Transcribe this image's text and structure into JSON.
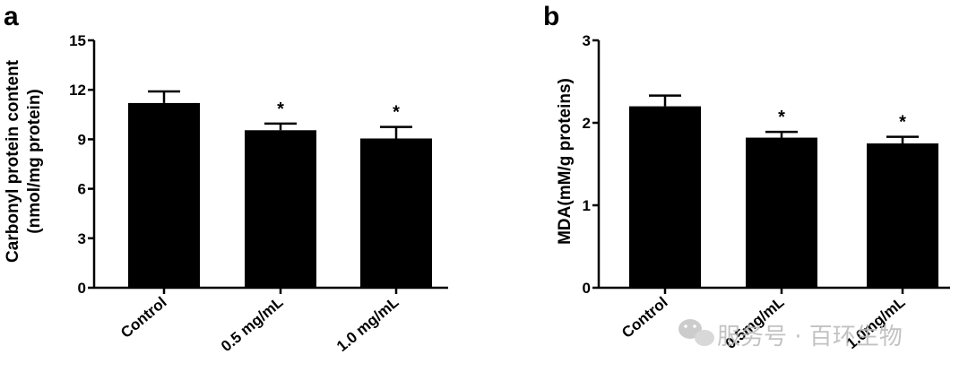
{
  "chart_data": [
    {
      "type": "bar",
      "panel_label": "a",
      "ylabel_line1": "Carbonyl protein content",
      "ylabel_line2": "(nmol/mg protein)",
      "categories": [
        "Control",
        "0.5 mg/mL",
        "1.0 mg/mL"
      ],
      "values": [
        11.2,
        9.55,
        9.05
      ],
      "errors": [
        0.7,
        0.4,
        0.7
      ],
      "significance": [
        "",
        "*",
        "*"
      ],
      "ylim": [
        0,
        15
      ],
      "yticks": [
        0,
        3,
        6,
        9,
        12,
        15
      ],
      "bar_color": "#000000"
    },
    {
      "type": "bar",
      "panel_label": "b",
      "ylabel_line1": "MDA(mM/g proteins)",
      "ylabel_line2": "",
      "categories": [
        "Control",
        "0.5mg/mL",
        "1.0mg/mL"
      ],
      "values": [
        2.2,
        1.82,
        1.75
      ],
      "errors": [
        0.13,
        0.07,
        0.08
      ],
      "significance": [
        "",
        "*",
        "*"
      ],
      "ylim": [
        0,
        3
      ],
      "yticks": [
        0,
        1,
        2,
        3
      ],
      "bar_color": "#000000"
    }
  ],
  "watermark": {
    "text": "服务号 · 百环生物",
    "icon": "wechat-icon"
  }
}
